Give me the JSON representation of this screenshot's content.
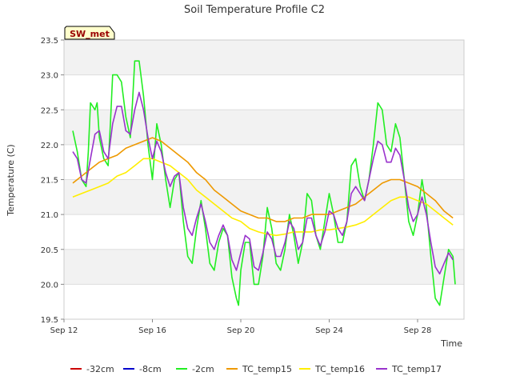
{
  "chart_data": {
    "type": "line",
    "title": "Soil Temperature Profile C2",
    "xlabel": "Time",
    "ylabel": "Temperature (C)",
    "site_badge": "SW_met",
    "x_ticks": [
      "Sep 12",
      "Sep 16",
      "Sep 20",
      "Sep 24",
      "Sep 28"
    ],
    "x_tick_days": [
      12,
      16,
      20,
      24,
      28
    ],
    "xlim": [
      12,
      30.1
    ],
    "y_ticks": [
      "19.5",
      "20.0",
      "20.5",
      "21.0",
      "21.5",
      "22.0",
      "22.5",
      "23.0",
      "23.5"
    ],
    "ylim": [
      19.5,
      23.5
    ],
    "grid": true,
    "legend_position": "bottom",
    "series": [
      {
        "name": "-32cm",
        "color": "#cc0000",
        "points": []
      },
      {
        "name": "-8cm",
        "color": "#0000cc",
        "points": []
      },
      {
        "name": "-2cm",
        "color": "#22ee22",
        "points": [
          [
            12.4,
            22.2
          ],
          [
            12.6,
            21.9
          ],
          [
            12.8,
            21.5
          ],
          [
            13.0,
            21.4
          ],
          [
            13.1,
            21.9
          ],
          [
            13.2,
            22.6
          ],
          [
            13.4,
            22.5
          ],
          [
            13.5,
            22.6
          ],
          [
            13.6,
            22.1
          ],
          [
            13.8,
            21.8
          ],
          [
            14.0,
            21.7
          ],
          [
            14.1,
            22.3
          ],
          [
            14.2,
            23.0
          ],
          [
            14.4,
            23.0
          ],
          [
            14.6,
            22.9
          ],
          [
            14.8,
            22.4
          ],
          [
            15.0,
            22.1
          ],
          [
            15.1,
            22.6
          ],
          [
            15.2,
            23.2
          ],
          [
            15.4,
            23.2
          ],
          [
            15.6,
            22.7
          ],
          [
            15.8,
            22.0
          ],
          [
            16.0,
            21.5
          ],
          [
            16.1,
            21.9
          ],
          [
            16.2,
            22.3
          ],
          [
            16.4,
            22.0
          ],
          [
            16.6,
            21.5
          ],
          [
            16.8,
            21.1
          ],
          [
            17.0,
            21.5
          ],
          [
            17.2,
            21.6
          ],
          [
            17.4,
            20.9
          ],
          [
            17.6,
            20.4
          ],
          [
            17.8,
            20.3
          ],
          [
            18.0,
            20.8
          ],
          [
            18.2,
            21.2
          ],
          [
            18.4,
            20.8
          ],
          [
            18.6,
            20.3
          ],
          [
            18.8,
            20.2
          ],
          [
            19.0,
            20.6
          ],
          [
            19.2,
            20.8
          ],
          [
            19.4,
            20.7
          ],
          [
            19.6,
            20.1
          ],
          [
            19.8,
            19.8
          ],
          [
            19.9,
            19.7
          ],
          [
            20.0,
            20.2
          ],
          [
            20.2,
            20.6
          ],
          [
            20.4,
            20.6
          ],
          [
            20.6,
            20.0
          ],
          [
            20.8,
            20.0
          ],
          [
            21.0,
            20.4
          ],
          [
            21.2,
            21.1
          ],
          [
            21.4,
            20.8
          ],
          [
            21.6,
            20.3
          ],
          [
            21.8,
            20.2
          ],
          [
            22.0,
            20.5
          ],
          [
            22.2,
            21.0
          ],
          [
            22.4,
            20.7
          ],
          [
            22.6,
            20.3
          ],
          [
            22.8,
            20.6
          ],
          [
            23.0,
            21.3
          ],
          [
            23.2,
            21.2
          ],
          [
            23.4,
            20.7
          ],
          [
            23.6,
            20.5
          ],
          [
            23.8,
            20.9
          ],
          [
            24.0,
            21.3
          ],
          [
            24.2,
            21.0
          ],
          [
            24.4,
            20.6
          ],
          [
            24.6,
            20.6
          ],
          [
            24.8,
            20.9
          ],
          [
            25.0,
            21.7
          ],
          [
            25.2,
            21.8
          ],
          [
            25.4,
            21.4
          ],
          [
            25.6,
            21.2
          ],
          [
            25.8,
            21.5
          ],
          [
            26.0,
            22.0
          ],
          [
            26.2,
            22.6
          ],
          [
            26.4,
            22.5
          ],
          [
            26.6,
            22.0
          ],
          [
            26.8,
            21.9
          ],
          [
            27.0,
            22.3
          ],
          [
            27.2,
            22.1
          ],
          [
            27.4,
            21.5
          ],
          [
            27.6,
            20.9
          ],
          [
            27.8,
            20.7
          ],
          [
            28.0,
            21.0
          ],
          [
            28.2,
            21.5
          ],
          [
            28.4,
            21.1
          ],
          [
            28.6,
            20.4
          ],
          [
            28.8,
            19.8
          ],
          [
            29.0,
            19.7
          ],
          [
            29.2,
            20.1
          ],
          [
            29.4,
            20.5
          ],
          [
            29.6,
            20.4
          ],
          [
            29.7,
            20.0
          ]
        ]
      },
      {
        "name": "TC_temp15",
        "color": "#ee9900",
        "points": [
          [
            12.4,
            21.45
          ],
          [
            12.8,
            21.55
          ],
          [
            13.2,
            21.65
          ],
          [
            13.6,
            21.75
          ],
          [
            14.0,
            21.8
          ],
          [
            14.4,
            21.85
          ],
          [
            14.8,
            21.95
          ],
          [
            15.2,
            22.0
          ],
          [
            15.6,
            22.05
          ],
          [
            16.0,
            22.1
          ],
          [
            16.4,
            22.05
          ],
          [
            16.8,
            21.95
          ],
          [
            17.2,
            21.85
          ],
          [
            17.6,
            21.75
          ],
          [
            18.0,
            21.6
          ],
          [
            18.4,
            21.5
          ],
          [
            18.8,
            21.35
          ],
          [
            19.2,
            21.25
          ],
          [
            19.6,
            21.15
          ],
          [
            20.0,
            21.05
          ],
          [
            20.4,
            21.0
          ],
          [
            20.8,
            20.95
          ],
          [
            21.2,
            20.95
          ],
          [
            21.6,
            20.9
          ],
          [
            22.0,
            20.9
          ],
          [
            22.4,
            20.95
          ],
          [
            22.8,
            20.95
          ],
          [
            23.2,
            21.0
          ],
          [
            23.6,
            21.0
          ],
          [
            24.0,
            21.0
          ],
          [
            24.4,
            21.05
          ],
          [
            24.8,
            21.1
          ],
          [
            25.2,
            21.15
          ],
          [
            25.6,
            21.25
          ],
          [
            26.0,
            21.35
          ],
          [
            26.4,
            21.45
          ],
          [
            26.8,
            21.5
          ],
          [
            27.2,
            21.5
          ],
          [
            27.6,
            21.45
          ],
          [
            28.0,
            21.4
          ],
          [
            28.4,
            21.3
          ],
          [
            28.8,
            21.2
          ],
          [
            29.2,
            21.05
          ],
          [
            29.6,
            20.95
          ]
        ]
      },
      {
        "name": "TC_temp16",
        "color": "#ffee00",
        "points": [
          [
            12.4,
            21.25
          ],
          [
            12.8,
            21.3
          ],
          [
            13.2,
            21.35
          ],
          [
            13.6,
            21.4
          ],
          [
            14.0,
            21.45
          ],
          [
            14.4,
            21.55
          ],
          [
            14.8,
            21.6
          ],
          [
            15.2,
            21.7
          ],
          [
            15.6,
            21.8
          ],
          [
            16.0,
            21.8
          ],
          [
            16.4,
            21.75
          ],
          [
            16.8,
            21.7
          ],
          [
            17.2,
            21.6
          ],
          [
            17.6,
            21.5
          ],
          [
            18.0,
            21.35
          ],
          [
            18.4,
            21.25
          ],
          [
            18.8,
            21.15
          ],
          [
            19.2,
            21.05
          ],
          [
            19.6,
            20.95
          ],
          [
            20.0,
            20.9
          ],
          [
            20.4,
            20.8
          ],
          [
            20.8,
            20.75
          ],
          [
            21.2,
            20.72
          ],
          [
            21.6,
            20.7
          ],
          [
            22.0,
            20.72
          ],
          [
            22.4,
            20.75
          ],
          [
            22.8,
            20.75
          ],
          [
            23.2,
            20.75
          ],
          [
            23.6,
            20.78
          ],
          [
            24.0,
            20.78
          ],
          [
            24.4,
            20.8
          ],
          [
            24.8,
            20.82
          ],
          [
            25.2,
            20.85
          ],
          [
            25.6,
            20.9
          ],
          [
            26.0,
            21.0
          ],
          [
            26.4,
            21.1
          ],
          [
            26.8,
            21.2
          ],
          [
            27.2,
            21.25
          ],
          [
            27.6,
            21.25
          ],
          [
            28.0,
            21.2
          ],
          [
            28.4,
            21.15
          ],
          [
            28.8,
            21.05
          ],
          [
            29.2,
            20.95
          ],
          [
            29.6,
            20.85
          ]
        ]
      },
      {
        "name": "TC_temp17",
        "color": "#9933cc",
        "points": [
          [
            12.4,
            21.9
          ],
          [
            12.6,
            21.8
          ],
          [
            12.8,
            21.5
          ],
          [
            13.0,
            21.45
          ],
          [
            13.2,
            21.8
          ],
          [
            13.4,
            22.15
          ],
          [
            13.6,
            22.2
          ],
          [
            13.8,
            21.9
          ],
          [
            14.0,
            21.8
          ],
          [
            14.2,
            22.3
          ],
          [
            14.4,
            22.55
          ],
          [
            14.6,
            22.55
          ],
          [
            14.8,
            22.2
          ],
          [
            15.0,
            22.15
          ],
          [
            15.2,
            22.5
          ],
          [
            15.4,
            22.75
          ],
          [
            15.6,
            22.5
          ],
          [
            15.8,
            22.1
          ],
          [
            16.0,
            21.8
          ],
          [
            16.2,
            22.05
          ],
          [
            16.4,
            21.9
          ],
          [
            16.6,
            21.6
          ],
          [
            16.8,
            21.4
          ],
          [
            17.0,
            21.55
          ],
          [
            17.2,
            21.6
          ],
          [
            17.4,
            21.1
          ],
          [
            17.6,
            20.8
          ],
          [
            17.8,
            20.7
          ],
          [
            18.0,
            20.95
          ],
          [
            18.2,
            21.15
          ],
          [
            18.4,
            20.9
          ],
          [
            18.6,
            20.6
          ],
          [
            18.8,
            20.5
          ],
          [
            19.0,
            20.7
          ],
          [
            19.2,
            20.85
          ],
          [
            19.4,
            20.7
          ],
          [
            19.6,
            20.35
          ],
          [
            19.8,
            20.2
          ],
          [
            20.0,
            20.45
          ],
          [
            20.2,
            20.7
          ],
          [
            20.4,
            20.65
          ],
          [
            20.6,
            20.25
          ],
          [
            20.8,
            20.2
          ],
          [
            21.0,
            20.45
          ],
          [
            21.2,
            20.75
          ],
          [
            21.4,
            20.65
          ],
          [
            21.6,
            20.4
          ],
          [
            21.8,
            20.4
          ],
          [
            22.0,
            20.6
          ],
          [
            22.2,
            20.9
          ],
          [
            22.4,
            20.8
          ],
          [
            22.6,
            20.5
          ],
          [
            22.8,
            20.6
          ],
          [
            23.0,
            20.95
          ],
          [
            23.2,
            20.95
          ],
          [
            23.4,
            20.7
          ],
          [
            23.6,
            20.55
          ],
          [
            23.8,
            20.75
          ],
          [
            24.0,
            21.05
          ],
          [
            24.2,
            21.0
          ],
          [
            24.4,
            20.8
          ],
          [
            24.6,
            20.7
          ],
          [
            24.8,
            20.9
          ],
          [
            25.0,
            21.3
          ],
          [
            25.2,
            21.4
          ],
          [
            25.4,
            21.3
          ],
          [
            25.6,
            21.2
          ],
          [
            25.8,
            21.5
          ],
          [
            26.0,
            21.8
          ],
          [
            26.2,
            22.05
          ],
          [
            26.4,
            22.0
          ],
          [
            26.6,
            21.75
          ],
          [
            26.8,
            21.75
          ],
          [
            27.0,
            21.95
          ],
          [
            27.2,
            21.85
          ],
          [
            27.4,
            21.5
          ],
          [
            27.6,
            21.1
          ],
          [
            27.8,
            20.9
          ],
          [
            28.0,
            21.0
          ],
          [
            28.2,
            21.25
          ],
          [
            28.4,
            21.0
          ],
          [
            28.6,
            20.6
          ],
          [
            28.8,
            20.25
          ],
          [
            29.0,
            20.15
          ],
          [
            29.2,
            20.3
          ],
          [
            29.4,
            20.45
          ],
          [
            29.6,
            20.35
          ]
        ]
      }
    ]
  }
}
